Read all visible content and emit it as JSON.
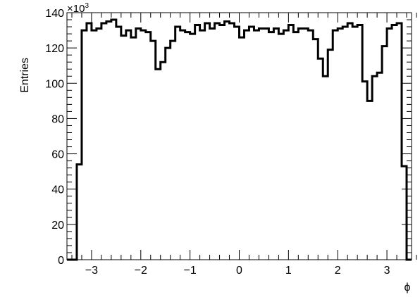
{
  "chart_data": {
    "type": "histogram",
    "xlabel": "ϕ",
    "ylabel": "Entries",
    "y_multiplier": {
      "base": "×10",
      "exponent": "3"
    },
    "xlim": [
      -3.5,
      3.5
    ],
    "ylim": [
      0,
      140
    ],
    "x_ticks": [
      -3,
      -2,
      -1,
      0,
      1,
      2,
      3
    ],
    "y_ticks": [
      0,
      20,
      40,
      60,
      80,
      100,
      120,
      140
    ],
    "bin_edges_range": [
      -3.5,
      3.5
    ],
    "bin_count": 70,
    "values": [
      0,
      0,
      54,
      130,
      134,
      130,
      131,
      134,
      135,
      136,
      132,
      127,
      130,
      126,
      131,
      130,
      129,
      124,
      108,
      112,
      120,
      124,
      132,
      130,
      129,
      128,
      133,
      130,
      134,
      131,
      134,
      133,
      135,
      134,
      132,
      126,
      130,
      132,
      130,
      131,
      131,
      129,
      131,
      128,
      130,
      133,
      129,
      131,
      131,
      130,
      125,
      114,
      104,
      119,
      130,
      131,
      132,
      134,
      132,
      133,
      101,
      90,
      104,
      106,
      121,
      131,
      133,
      134,
      53,
      0
    ],
    "color": "#000000",
    "grid": false,
    "legend": "none"
  }
}
